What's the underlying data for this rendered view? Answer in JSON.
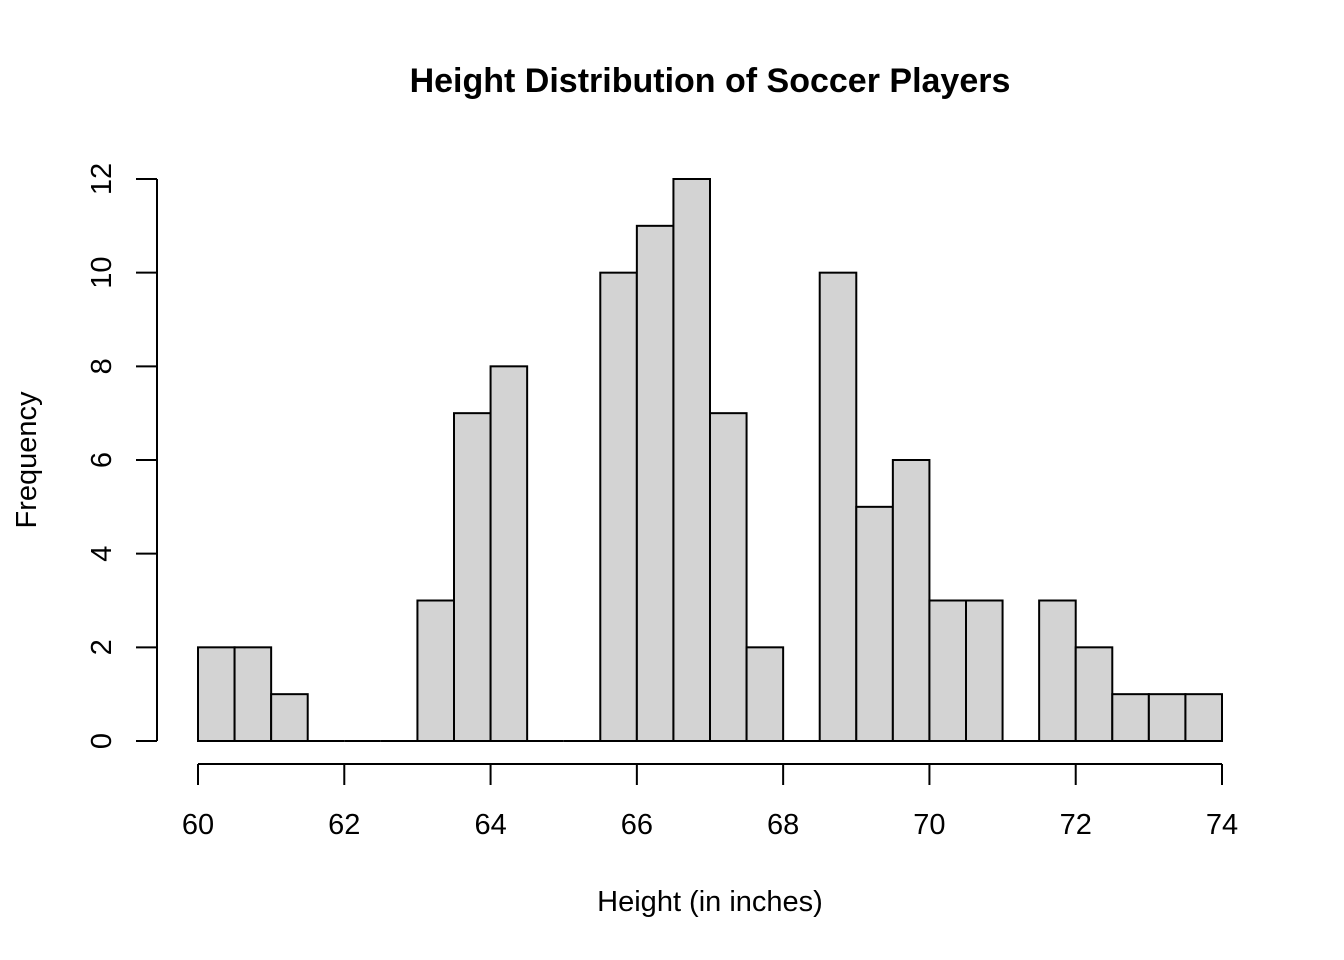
{
  "chart_data": {
    "type": "bar",
    "title": "Height Distribution of Soccer Players",
    "xlabel": "Height (in inches)",
    "ylabel": "Frequency",
    "bin_width": 0.5,
    "bin_starts": [
      60,
      60.5,
      61,
      61.5,
      62,
      62.5,
      63,
      63.5,
      64,
      64.5,
      65,
      65.5,
      66,
      66.5,
      67,
      67.5,
      68,
      68.5,
      69,
      69.5,
      70,
      70.5,
      71,
      71.5,
      72,
      72.5,
      73,
      73.5
    ],
    "values": [
      2,
      2,
      1,
      0,
      0,
      0,
      3,
      7,
      8,
      0,
      0,
      10,
      11,
      12,
      7,
      2,
      0,
      10,
      5,
      6,
      3,
      3,
      0,
      3,
      2,
      1,
      1,
      1
    ],
    "xlim": [
      60,
      74
    ],
    "ylim": [
      0,
      12
    ],
    "x_ticks": [
      "60",
      "62",
      "64",
      "66",
      "68",
      "70",
      "72",
      "74"
    ],
    "y_ticks": [
      "0",
      "2",
      "4",
      "6",
      "8",
      "10",
      "12"
    ],
    "bar_color": "#d3d3d3",
    "grid": false,
    "legend": "none"
  }
}
